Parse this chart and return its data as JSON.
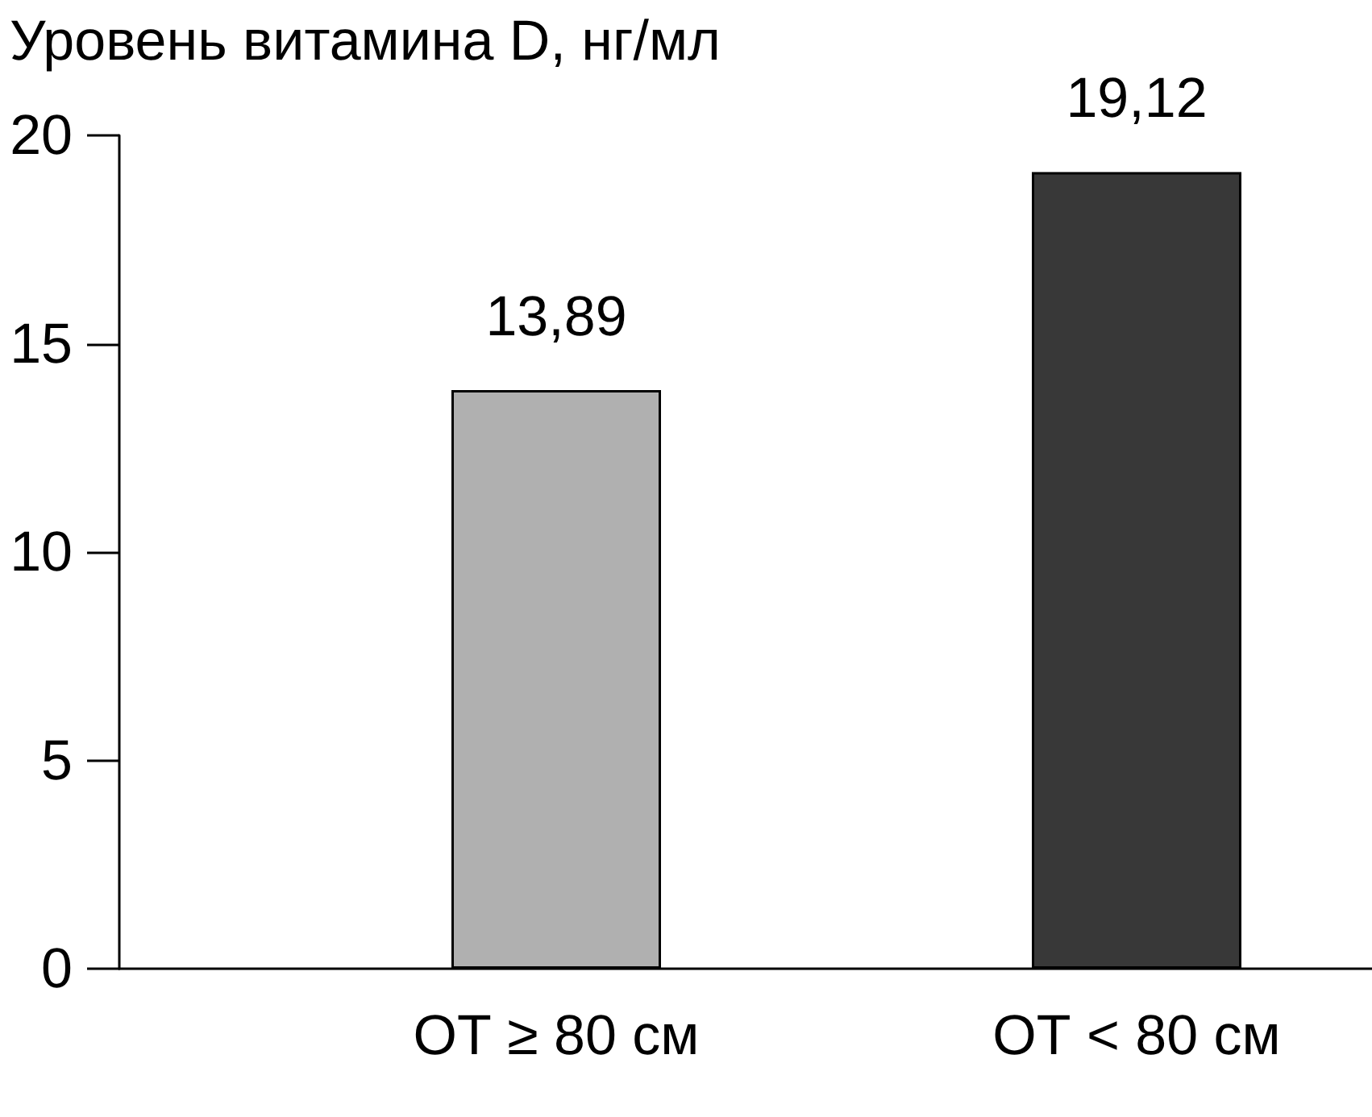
{
  "chart_data": {
    "type": "bar",
    "ylabel": "Уровень витамина D, нг/мл",
    "categories": [
      "ОТ ≥ 80 см",
      "ОТ < 80 см"
    ],
    "values": [
      13.89,
      19.12
    ],
    "colors": [
      "#b0b0b0",
      "#383838"
    ],
    "value_labels": [
      "13,89",
      "19,12"
    ],
    "ylim": [
      0,
      20
    ],
    "yticks": [
      0,
      5,
      10,
      15,
      20
    ],
    "grid": false
  }
}
